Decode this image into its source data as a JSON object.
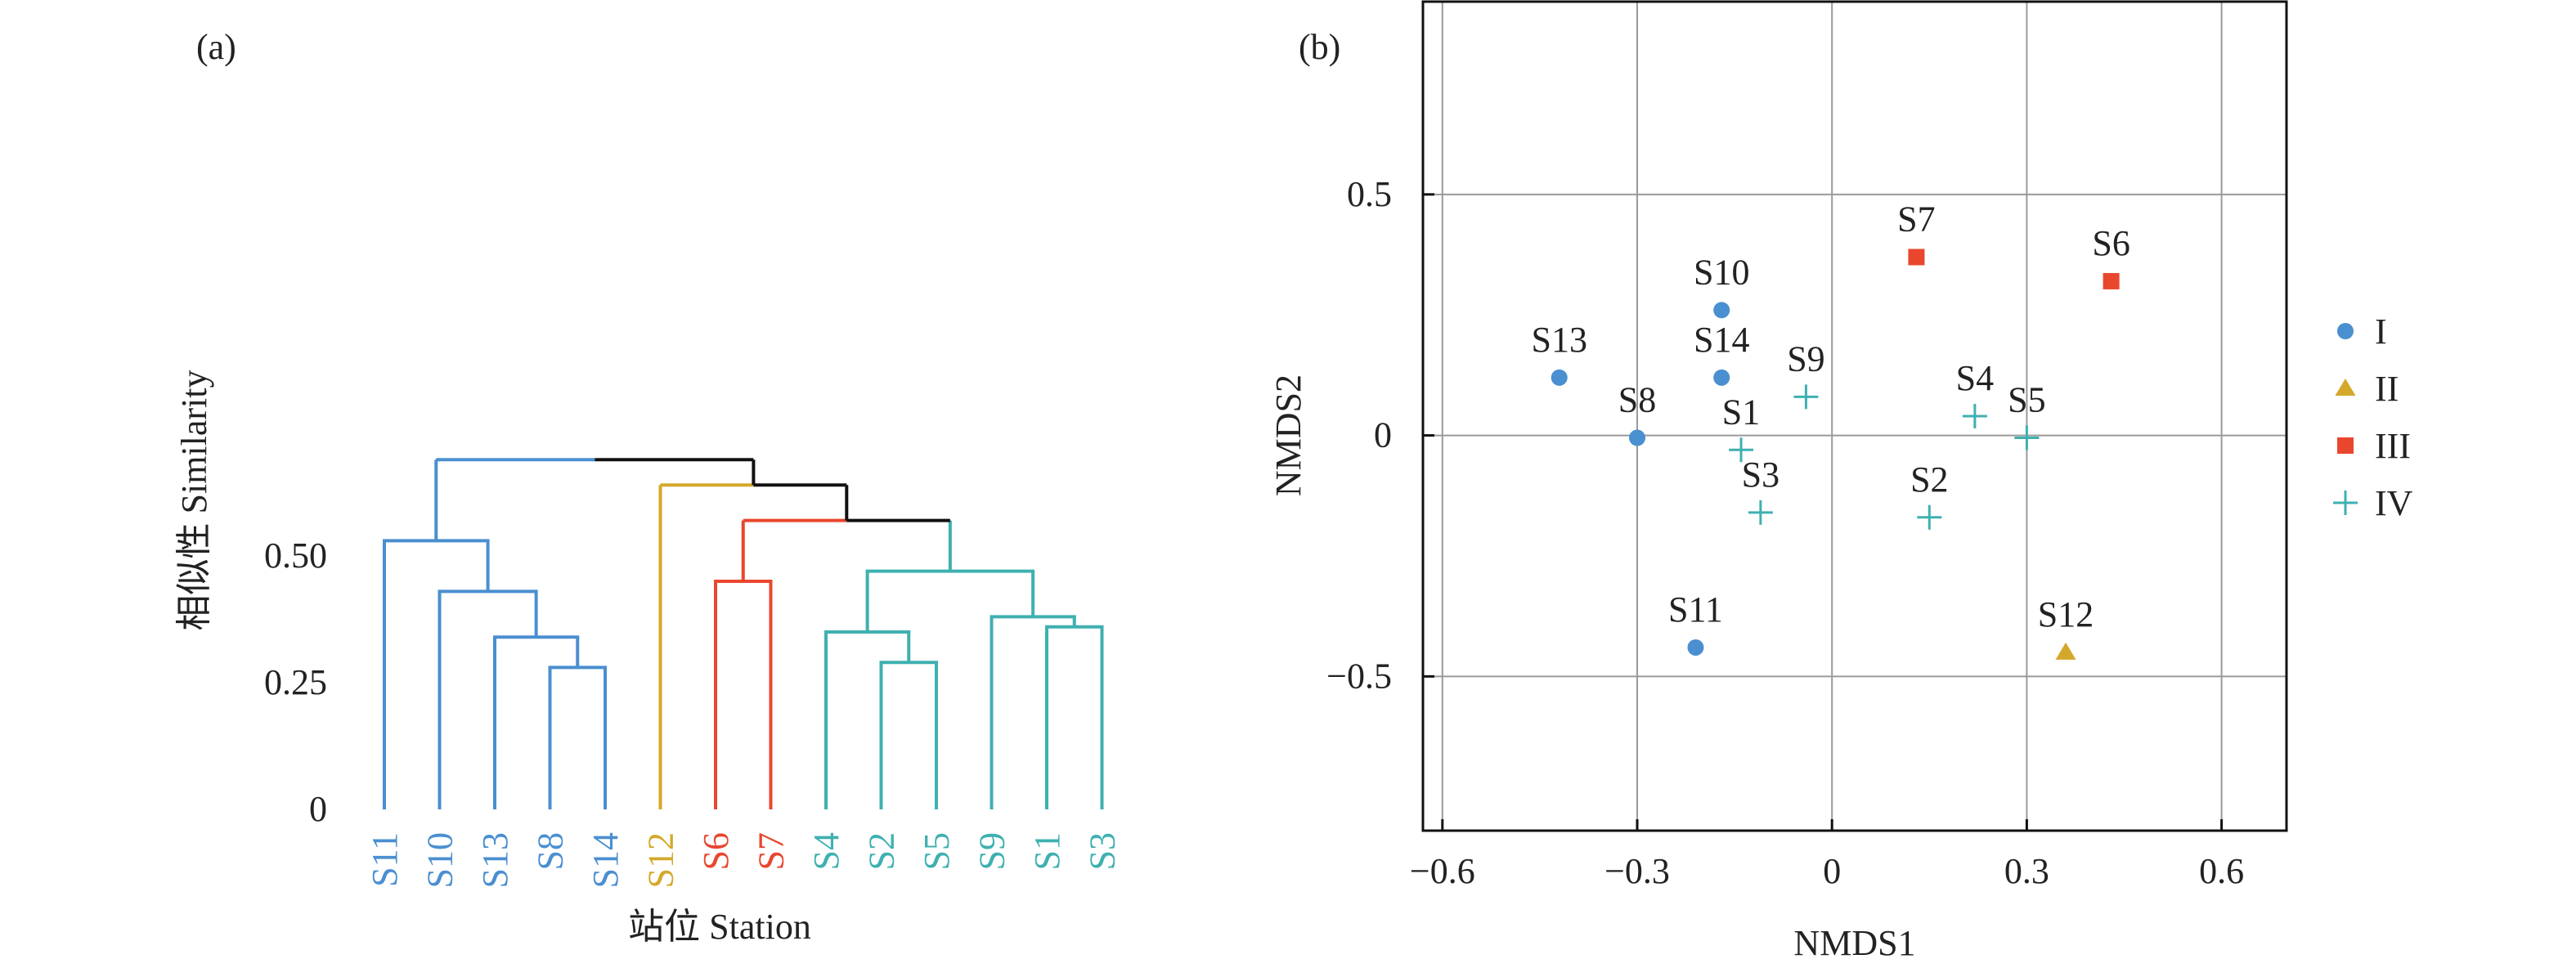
{
  "panel_a": {
    "label": "(a)",
    "ylabel": "相似性 Similarity",
    "xlabel": "站位 Station"
  },
  "panel_b": {
    "label": "(b)",
    "xlabel": "NMDS1",
    "ylabel": "NMDS2"
  },
  "colors": {
    "I": "#4a8fd0",
    "II": "#d4a82a",
    "III": "#e8472e",
    "IV": "#3fb0b0",
    "root": "#111111",
    "grid": "#9a9a9a"
  },
  "chart_data": [
    {
      "type": "dendrogram",
      "title": "",
      "xlabel": "站位 Station",
      "ylabel": "相似性 Similarity",
      "ylim": [
        0,
        0.7
      ],
      "yticks": [
        0,
        0.25,
        0.5
      ],
      "ytick_labels": [
        "0",
        "0.25",
        "0.50"
      ],
      "leaves": [
        {
          "name": "S11",
          "group": "I"
        },
        {
          "name": "S10",
          "group": "I"
        },
        {
          "name": "S13",
          "group": "I"
        },
        {
          "name": "S8",
          "group": "I"
        },
        {
          "name": "S14",
          "group": "I"
        },
        {
          "name": "S12",
          "group": "II"
        },
        {
          "name": "S6",
          "group": "III"
        },
        {
          "name": "S7",
          "group": "III"
        },
        {
          "name": "S4",
          "group": "IV"
        },
        {
          "name": "S2",
          "group": "IV"
        },
        {
          "name": "S5",
          "group": "IV"
        },
        {
          "name": "S9",
          "group": "IV"
        },
        {
          "name": "S1",
          "group": "IV"
        },
        {
          "name": "S3",
          "group": "IV"
        }
      ],
      "merges": [
        {
          "id": "a",
          "left": "S8",
          "right": "S14",
          "height": 0.28,
          "group": "I"
        },
        {
          "id": "b",
          "left": "S13",
          "right": "a",
          "height": 0.34,
          "group": "I"
        },
        {
          "id": "c",
          "left": "S10",
          "right": "b",
          "height": 0.43,
          "group": "I"
        },
        {
          "id": "d",
          "left": "S11",
          "right": "c",
          "height": 0.53,
          "group": "I"
        },
        {
          "id": "e",
          "left": "S6",
          "right": "S7",
          "height": 0.45,
          "group": "III"
        },
        {
          "id": "f",
          "left": "S2",
          "right": "S5",
          "height": 0.29,
          "group": "IV"
        },
        {
          "id": "g",
          "left": "S4",
          "right": "f",
          "height": 0.35,
          "group": "IV"
        },
        {
          "id": "h",
          "left": "S1",
          "right": "S3",
          "height": 0.36,
          "group": "IV"
        },
        {
          "id": "i",
          "left": "S9",
          "right": "h",
          "height": 0.38,
          "group": "IV"
        },
        {
          "id": "j",
          "left": "g",
          "right": "i",
          "height": 0.47,
          "group": "IV"
        },
        {
          "id": "k",
          "left": "e",
          "right": "j",
          "height": 0.57,
          "group": "root",
          "left_group": "III",
          "right_group": "IV"
        },
        {
          "id": "l",
          "left": "S12",
          "right": "k",
          "height": 0.64,
          "group": "root",
          "left_group": "II",
          "right_group": "root"
        },
        {
          "id": "m",
          "left": "d",
          "right": "l",
          "height": 0.69,
          "group": "root",
          "left_group": "I",
          "right_group": "root"
        }
      ]
    },
    {
      "type": "scatter",
      "title": "",
      "xlabel": "NMDS1",
      "ylabel": "NMDS2",
      "xlim": [
        -0.63,
        0.7
      ],
      "ylim": [
        -0.82,
        0.9
      ],
      "xticks": [
        -0.6,
        -0.3,
        0,
        0.3,
        0.6
      ],
      "xtick_labels": [
        "−0.6",
        "−0.3",
        "0",
        "0.3",
        "0.6"
      ],
      "yticks": [
        -0.5,
        0,
        0.5
      ],
      "ytick_labels": [
        "−0.5",
        "0",
        "0.5"
      ],
      "grid": true,
      "legend_position": "right",
      "series": [
        {
          "name": "I",
          "marker": "circle",
          "color": "#4a8fd0",
          "points": [
            {
              "label": "S13",
              "x": -0.42,
              "y": 0.12
            },
            {
              "label": "S10",
              "x": -0.17,
              "y": 0.26
            },
            {
              "label": "S14",
              "x": -0.17,
              "y": 0.12
            },
            {
              "label": "S8",
              "x": -0.3,
              "y": -0.005
            },
            {
              "label": "S11",
              "x": -0.21,
              "y": -0.44
            }
          ]
        },
        {
          "name": "II",
          "marker": "triangle",
          "color": "#d4a82a",
          "points": [
            {
              "label": "S12",
              "x": 0.36,
              "y": -0.45
            }
          ]
        },
        {
          "name": "III",
          "marker": "square",
          "color": "#e8472e",
          "points": [
            {
              "label": "S7",
              "x": 0.13,
              "y": 0.37
            },
            {
              "label": "S6",
              "x": 0.43,
              "y": 0.32
            }
          ]
        },
        {
          "name": "IV",
          "marker": "plus",
          "color": "#3fb0b0",
          "points": [
            {
              "label": "S9",
              "x": -0.04,
              "y": 0.08
            },
            {
              "label": "S1",
              "x": -0.14,
              "y": -0.03
            },
            {
              "label": "S3",
              "x": -0.11,
              "y": -0.16
            },
            {
              "label": "S4",
              "x": 0.22,
              "y": 0.04
            },
            {
              "label": "S5",
              "x": 0.3,
              "y": -0.005
            },
            {
              "label": "S2",
              "x": 0.15,
              "y": -0.17
            }
          ]
        }
      ]
    }
  ]
}
